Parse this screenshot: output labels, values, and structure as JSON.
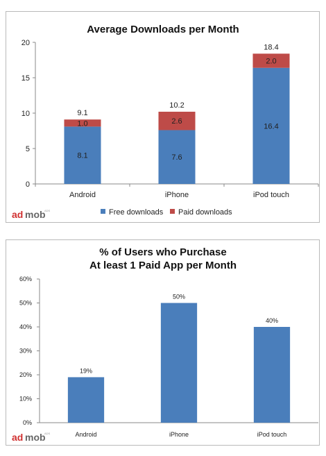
{
  "brand": {
    "logo_a": "ad",
    "logo_b": "mob",
    "logo_small": "ADS"
  },
  "colors": {
    "free": "#4a7ebb",
    "paid": "#be4b48",
    "bar": "#4a7ebb",
    "axis": "#888888",
    "logo_red": "#d03030",
    "logo_gray": "#666666"
  },
  "chart_data": [
    {
      "type": "bar",
      "stacked": true,
      "title": "Average Downloads per Month",
      "categories": [
        "Android",
        "iPhone",
        "iPod touch"
      ],
      "series": [
        {
          "name": "Free downloads",
          "values": [
            8.1,
            7.6,
            16.4
          ]
        },
        {
          "name": "Paid downloads",
          "values": [
            1.0,
            2.6,
            2.0
          ]
        }
      ],
      "totals": [
        "9.1",
        "10.2",
        "18.4"
      ],
      "free_labels": [
        "8.1",
        "7.6",
        "16.4"
      ],
      "paid_labels": [
        "1.0",
        "2.6",
        "2.0"
      ],
      "ylim": [
        0,
        20
      ],
      "yticks": [
        "0",
        "5",
        "10",
        "15",
        "20"
      ],
      "legend": "bottom",
      "grid": false
    },
    {
      "type": "bar",
      "title_line1": "% of Users who Purchase",
      "title_line2": "At least 1 Paid App per Month",
      "categories": [
        "Android",
        "iPhone",
        "iPod touch"
      ],
      "values": [
        19,
        50,
        40
      ],
      "value_labels": [
        "19%",
        "50%",
        "40%"
      ],
      "ylim": [
        0,
        60
      ],
      "yticks": [
        "0%",
        "10%",
        "20%",
        "30%",
        "40%",
        "50%",
        "60%"
      ],
      "grid": false
    }
  ]
}
